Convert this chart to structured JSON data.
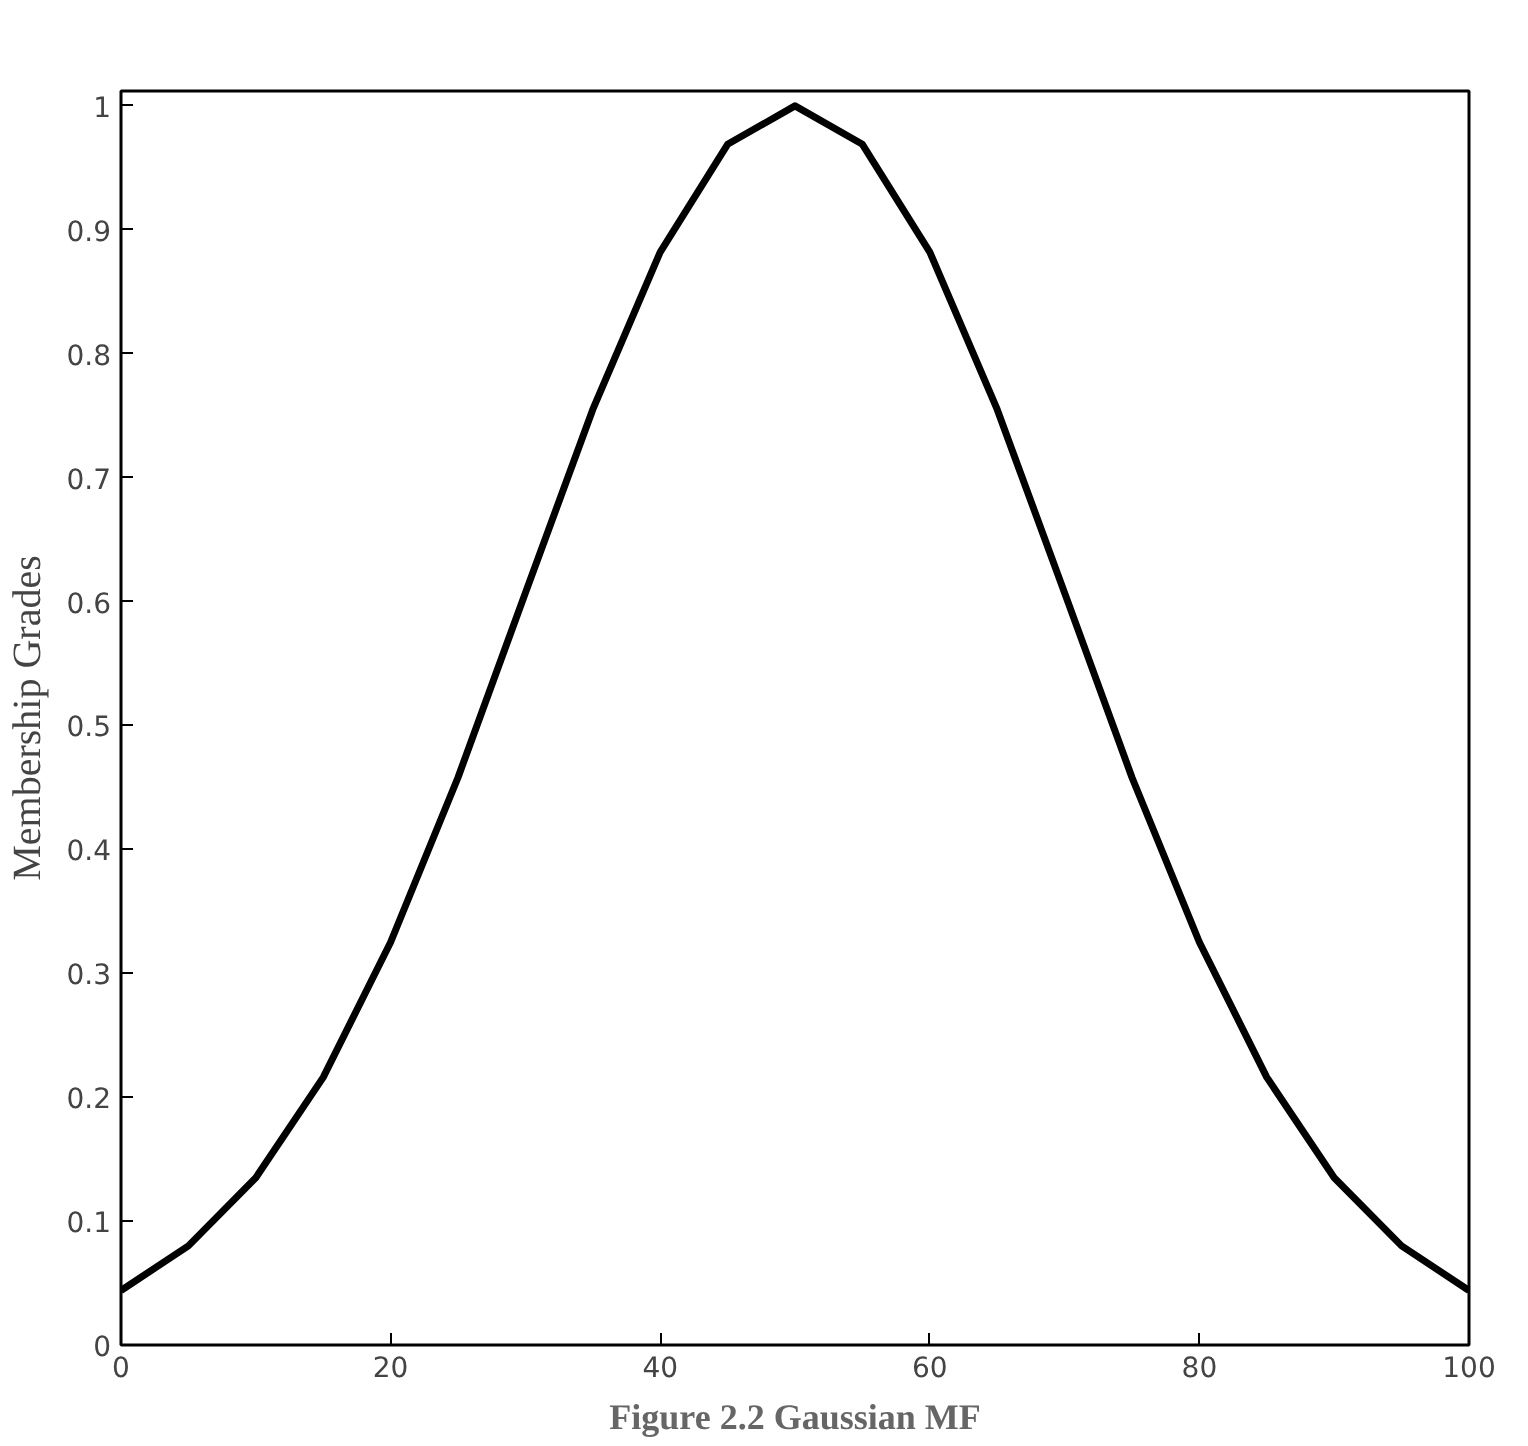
{
  "chart_data": {
    "type": "line",
    "ylabel": "Membership Grades",
    "annotations": [
      "Figure 2.2 Gaussian MF"
    ],
    "x": [
      0,
      5,
      10,
      15,
      20,
      25,
      30,
      35,
      40,
      45,
      50,
      55,
      60,
      65,
      70,
      75,
      80,
      85,
      90,
      95,
      100
    ],
    "series": [
      {
        "color": "#000000",
        "values": [
          0.044,
          0.08,
          0.135,
          0.216,
          0.325,
          0.458,
          0.607,
          0.755,
          0.882,
          0.969,
          1.0,
          0.969,
          0.882,
          0.755,
          0.607,
          0.458,
          0.325,
          0.216,
          0.135,
          0.08,
          0.044
        ]
      }
    ],
    "xlim": [
      0,
      100
    ],
    "ylim": [
      0,
      1.012
    ],
    "xticks": [
      0,
      20,
      40,
      60,
      80,
      100
    ],
    "yticks": [
      0,
      0.1,
      0.2,
      0.3,
      0.4,
      0.5,
      0.6,
      0.7,
      0.8,
      0.9,
      1
    ],
    "grid": false,
    "marker": "none",
    "line_style": "solid"
  }
}
